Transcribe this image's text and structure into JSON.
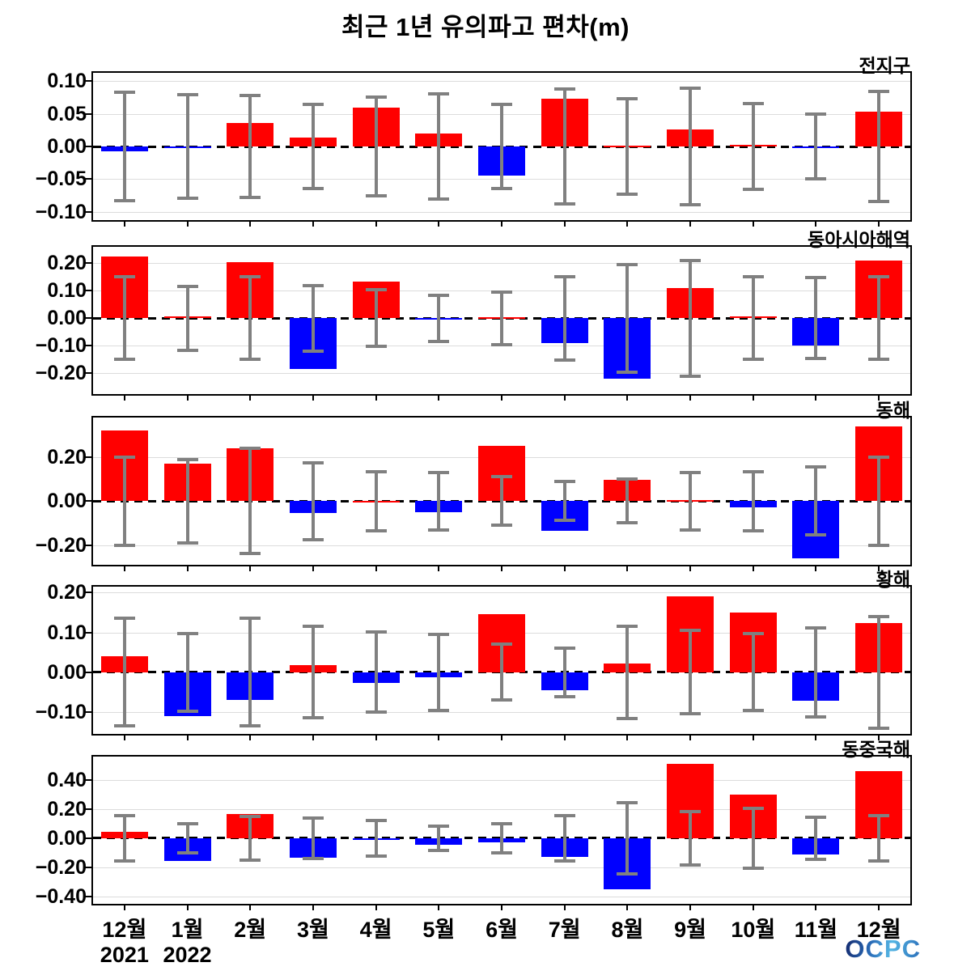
{
  "title": "최근 1년 유의파고 편차(m)",
  "logo": "OCPC",
  "months": [
    "12월",
    "1월",
    "2월",
    "3월",
    "4월",
    "5월",
    "6월",
    "7월",
    "8월",
    "9월",
    "10월",
    "11월",
    "12월"
  ],
  "year_labels": [
    {
      "text": "2021",
      "month_index": 0
    },
    {
      "text": "2022",
      "month_index": 1
    }
  ],
  "colors": {
    "positive": "#ff0000",
    "negative": "#0000ff",
    "error_bar": "#808080",
    "gridline": "#dcdcdc",
    "zero_line": "#000000"
  },
  "chart_data": [
    {
      "type": "bar",
      "region": "전지구",
      "ylim": [
        -0.113,
        0.113
      ],
      "yticks": [
        0.1,
        0.05,
        0.0,
        -0.05,
        -0.1
      ],
      "ytick_labels": [
        "0.10",
        "0.05",
        "0.00",
        "−0.05",
        "−0.10"
      ],
      "values": [
        -0.008,
        -0.002,
        0.036,
        0.014,
        0.06,
        0.02,
        -0.045,
        0.073,
        0.001,
        0.026,
        0.002,
        -0.001,
        0.054
      ],
      "errors": [
        0.083,
        0.08,
        0.078,
        0.064,
        0.076,
        0.081,
        0.064,
        0.088,
        0.073,
        0.09,
        0.066,
        0.05,
        0.084
      ]
    },
    {
      "type": "bar",
      "region": "동아시아해역",
      "ylim": [
        -0.275,
        0.26
      ],
      "yticks": [
        0.2,
        0.1,
        0.0,
        -0.1,
        -0.2
      ],
      "ytick_labels": [
        "0.20",
        "0.10",
        "0.00",
        "−0.10",
        "−0.20"
      ],
      "values": [
        0.225,
        0.008,
        0.205,
        -0.185,
        0.135,
        -0.002,
        0.004,
        -0.09,
        -0.22,
        0.11,
        0.006,
        -0.1,
        0.21
      ],
      "errors": [
        0.15,
        0.115,
        0.15,
        0.12,
        0.103,
        0.085,
        0.095,
        0.152,
        0.195,
        0.21,
        0.15,
        0.147,
        0.15
      ]
    },
    {
      "type": "bar",
      "region": "동해",
      "ylim": [
        -0.29,
        0.38
      ],
      "yticks": [
        0.2,
        0.0,
        -0.2
      ],
      "ytick_labels": [
        "0.20",
        "0.00",
        "−0.20"
      ],
      "values": [
        0.32,
        0.17,
        0.24,
        -0.055,
        0.002,
        -0.05,
        0.25,
        -0.135,
        0.098,
        0.006,
        -0.03,
        -0.26,
        0.34
      ],
      "errors": [
        0.2,
        0.19,
        0.24,
        0.175,
        0.135,
        0.13,
        0.11,
        0.088,
        0.1,
        0.13,
        0.135,
        0.155,
        0.2
      ]
    },
    {
      "type": "bar",
      "region": "황해",
      "ylim": [
        -0.155,
        0.215
      ],
      "yticks": [
        0.2,
        0.1,
        0.0,
        -0.1
      ],
      "ytick_labels": [
        "0.20",
        "0.10",
        "0.00",
        "−0.10"
      ],
      "values": [
        0.04,
        -0.11,
        -0.07,
        0.018,
        -0.026,
        -0.012,
        0.145,
        -0.046,
        0.022,
        0.19,
        0.15,
        -0.072,
        0.124
      ],
      "errors": [
        0.135,
        0.098,
        0.135,
        0.115,
        0.101,
        0.096,
        0.07,
        0.061,
        0.116,
        0.105,
        0.097,
        0.112,
        0.14
      ]
    },
    {
      "type": "bar",
      "region": "동중국해",
      "ylim": [
        -0.45,
        0.56
      ],
      "yticks": [
        0.4,
        0.2,
        0.0,
        -0.2,
        -0.4
      ],
      "ytick_labels": [
        "0.40",
        "0.20",
        "0.00",
        "−0.20",
        "−0.40"
      ],
      "values": [
        0.045,
        -0.155,
        0.165,
        -0.135,
        -0.002,
        -0.045,
        -0.03,
        -0.13,
        -0.35,
        0.51,
        0.3,
        -0.11,
        0.46
      ],
      "errors": [
        0.155,
        0.1,
        0.148,
        0.14,
        0.123,
        0.082,
        0.1,
        0.155,
        0.245,
        0.185,
        0.205,
        0.145,
        0.155
      ]
    }
  ]
}
